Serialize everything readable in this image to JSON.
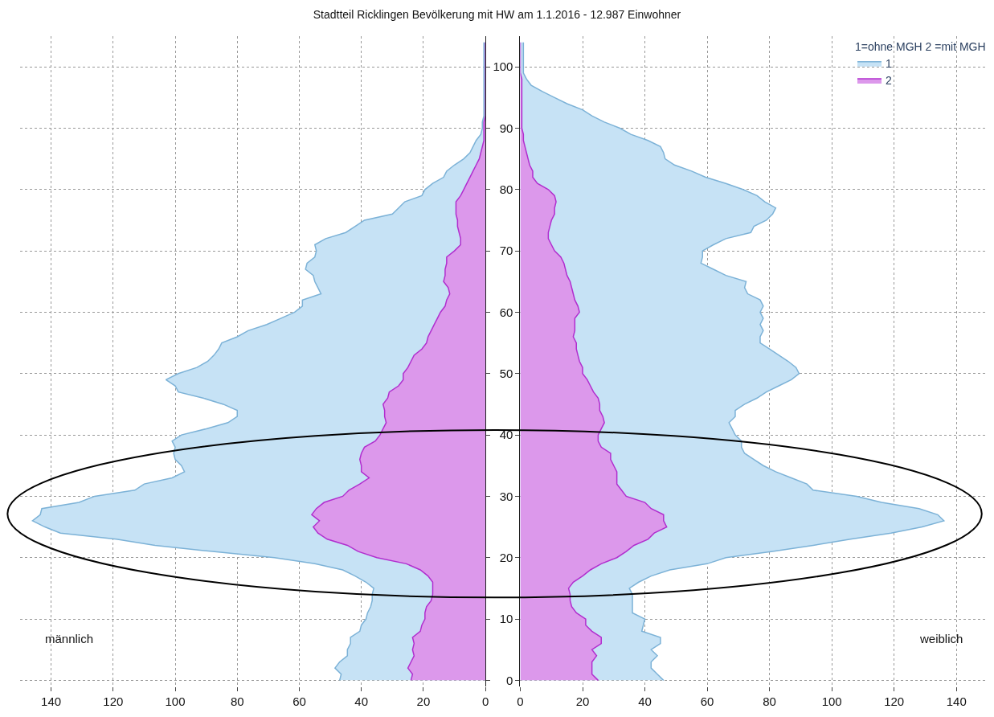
{
  "chart_data": [
    {
      "type": "area",
      "orientation": "horizontal",
      "title": "Stadtteil Ricklingen Bevölkerung mit HW am 1.1.2016 - 12.987 Einwohner",
      "x": [
        0,
        1,
        2,
        3,
        4,
        5,
        6,
        7,
        8,
        9,
        10,
        11,
        12,
        13,
        14,
        15,
        16,
        17,
        18,
        19,
        20,
        21,
        22,
        23,
        24,
        25,
        26,
        27,
        28,
        29,
        30,
        31,
        32,
        33,
        34,
        35,
        36,
        37,
        38,
        39,
        40,
        41,
        42,
        43,
        44,
        45,
        46,
        47,
        48,
        49,
        50,
        51,
        52,
        53,
        54,
        55,
        56,
        57,
        58,
        59,
        60,
        61,
        62,
        63,
        64,
        65,
        66,
        67,
        68,
        69,
        70,
        71,
        72,
        73,
        74,
        75,
        76,
        77,
        78,
        79,
        80,
        81,
        82,
        83,
        84,
        85,
        86,
        87,
        88,
        89,
        90,
        91,
        92,
        93,
        94,
        95,
        96,
        97,
        98,
        99,
        100,
        101,
        102,
        103,
        104
      ],
      "series": [
        {
          "color": "#c6e2f5",
          "values": [
            47,
            46.5,
            48.5,
            47,
            44.5,
            44.5,
            43.5,
            43.5,
            40.5,
            40,
            38.5,
            38,
            37,
            36.5,
            36.5,
            36,
            38.5,
            42,
            46,
            55,
            68,
            88,
            106.5,
            119,
            137,
            142,
            146,
            143.5,
            143,
            131,
            126,
            113,
            110,
            101,
            97,
            98,
            100,
            100.5,
            100,
            101,
            98,
            90,
            83,
            80,
            80,
            84.5,
            91,
            99,
            100,
            103,
            99,
            93,
            89.5,
            87.5,
            86,
            85,
            80,
            76.5,
            70.5,
            66,
            61.5,
            59,
            59,
            53,
            54,
            55,
            55.5,
            58,
            57.5,
            55,
            54.5,
            55,
            51.5,
            45,
            42,
            39,
            30,
            28,
            26,
            20.5,
            19.5,
            17,
            13.5,
            12.5,
            10,
            7,
            5,
            4,
            3,
            1.5,
            1,
            1,
            0.5,
            0.5,
            0.5,
            0.5,
            0.5,
            0.5,
            0.5,
            0.5,
            0.5,
            0.5,
            0.5,
            0.5,
            0.5
          ]
        },
        {
          "color": "#dc98eb",
          "values": [
            24,
            23.5,
            25,
            24,
            23,
            23.5,
            23,
            23.5,
            21,
            20.5,
            19.5,
            19.5,
            19,
            17.5,
            17,
            17,
            17,
            18.5,
            21,
            25.5,
            35,
            41,
            44.5,
            51,
            54,
            55.5,
            53.5,
            56,
            54.5,
            52,
            46,
            44,
            40.5,
            37.5,
            40,
            40,
            40.5,
            40,
            39,
            35.5,
            34,
            33,
            32,
            32.5,
            32.5,
            33,
            31.5,
            31,
            28,
            26.5,
            26.5,
            25,
            24,
            23,
            20.5,
            19,
            18.5,
            17.5,
            16.5,
            15.5,
            14.5,
            13,
            12.5,
            11.5,
            12,
            13.5,
            13,
            13,
            12.5,
            12.5,
            10,
            8,
            8,
            8.5,
            9,
            9,
            9.5,
            9.5,
            9.5,
            8,
            7,
            6,
            5,
            4,
            3,
            2,
            1.5,
            1,
            0.5,
            0.5,
            0.5,
            0.5,
            0,
            0,
            0,
            0,
            0,
            0,
            0,
            0,
            0,
            0,
            0,
            0,
            0
          ]
        }
      ],
      "xlim": [
        150,
        0
      ],
      "xticks": [
        0,
        20,
        40,
        60,
        80,
        100,
        120,
        140
      ],
      "ylim": [
        -1,
        105
      ],
      "yticks": [
        0,
        10,
        20,
        30,
        40,
        50,
        60,
        70,
        80,
        90,
        100
      ],
      "grid": true,
      "tick_labels": "x",
      "annotations": [
        "männlich"
      ]
    },
    {
      "type": "area",
      "orientation": "horizontal",
      "legend_title": "1=ohne MGH 2 =mit MGH",
      "legend": "top right",
      "x": [
        0,
        1,
        2,
        3,
        4,
        5,
        6,
        7,
        8,
        9,
        10,
        11,
        12,
        13,
        14,
        15,
        16,
        17,
        18,
        19,
        20,
        21,
        22,
        23,
        24,
        25,
        26,
        27,
        28,
        29,
        30,
        31,
        32,
        33,
        34,
        35,
        36,
        37,
        38,
        39,
        40,
        41,
        42,
        43,
        44,
        45,
        46,
        47,
        48,
        49,
        50,
        51,
        52,
        53,
        54,
        55,
        56,
        57,
        58,
        59,
        60,
        61,
        62,
        63,
        64,
        65,
        66,
        67,
        68,
        69,
        70,
        71,
        72,
        73,
        74,
        75,
        76,
        77,
        78,
        79,
        80,
        81,
        82,
        83,
        84,
        85,
        86,
        87,
        88,
        89,
        90,
        91,
        92,
        93,
        94,
        95,
        96,
        97,
        98,
        99,
        100,
        101,
        102,
        103,
        104
      ],
      "series": [
        {
          "name": "1",
          "color": "#c6e2f5",
          "values": [
            46,
            44,
            42,
            42,
            44,
            42,
            45,
            45,
            39,
            39.5,
            40,
            36,
            36,
            36,
            36,
            35,
            38,
            42,
            48,
            60,
            66,
            81,
            94,
            106,
            119,
            129,
            136,
            134,
            128,
            116,
            108,
            94,
            92,
            87,
            82,
            78,
            75,
            72,
            71,
            71,
            69,
            68,
            67,
            69,
            69,
            72,
            76,
            79,
            83,
            87,
            89.5,
            88.5,
            86,
            83,
            80,
            77,
            77,
            78,
            77,
            78,
            77,
            78,
            77,
            73,
            72,
            72.5,
            66,
            62,
            58,
            58.5,
            58.5,
            62,
            66,
            74,
            75,
            79,
            81,
            82,
            78.5,
            76,
            71.5,
            66,
            59.5,
            55,
            49.5,
            46.5,
            46,
            45,
            41,
            35.5,
            32,
            27,
            23,
            20,
            15,
            11,
            7,
            3.5,
            2,
            1,
            1,
            1,
            1,
            1,
            1
          ]
        },
        {
          "name": "2",
          "color": "#dc98eb",
          "values": [
            25,
            23,
            23,
            23,
            24.5,
            23,
            26,
            26,
            23,
            21,
            21,
            18,
            16.5,
            16,
            16,
            15.5,
            17,
            20,
            22.5,
            26,
            31,
            34,
            36.5,
            41,
            43,
            47,
            46,
            46,
            42,
            40,
            34,
            32.5,
            31,
            31,
            31,
            30,
            29,
            29,
            26,
            25,
            25,
            26,
            27,
            26.5,
            25.5,
            25.5,
            25,
            23.5,
            22.5,
            21.5,
            20,
            20,
            19,
            18.5,
            18,
            18,
            17,
            17.5,
            17.5,
            17.5,
            19,
            18.5,
            17.5,
            17,
            16.5,
            16,
            15,
            14.5,
            14,
            13,
            11,
            10,
            9,
            9,
            9.5,
            10,
            11,
            11,
            11.5,
            11,
            9,
            5.5,
            4,
            4,
            3,
            2.5,
            2,
            1.5,
            1,
            1,
            0.5,
            0.5,
            0.5,
            0.5,
            0.5,
            0.5,
            0.5,
            0.5,
            0.5,
            0,
            0,
            0,
            0,
            0,
            0
          ]
        }
      ],
      "xlim": [
        0,
        150
      ],
      "xticks": [
        0,
        20,
        40,
        60,
        80,
        100,
        120,
        140
      ],
      "ylim": [
        -1,
        105
      ],
      "yticks": [
        0,
        10,
        20,
        30,
        40,
        50,
        60,
        70,
        80,
        90,
        100
      ],
      "grid": true,
      "annotations": [
        "weiblich"
      ]
    }
  ]
}
